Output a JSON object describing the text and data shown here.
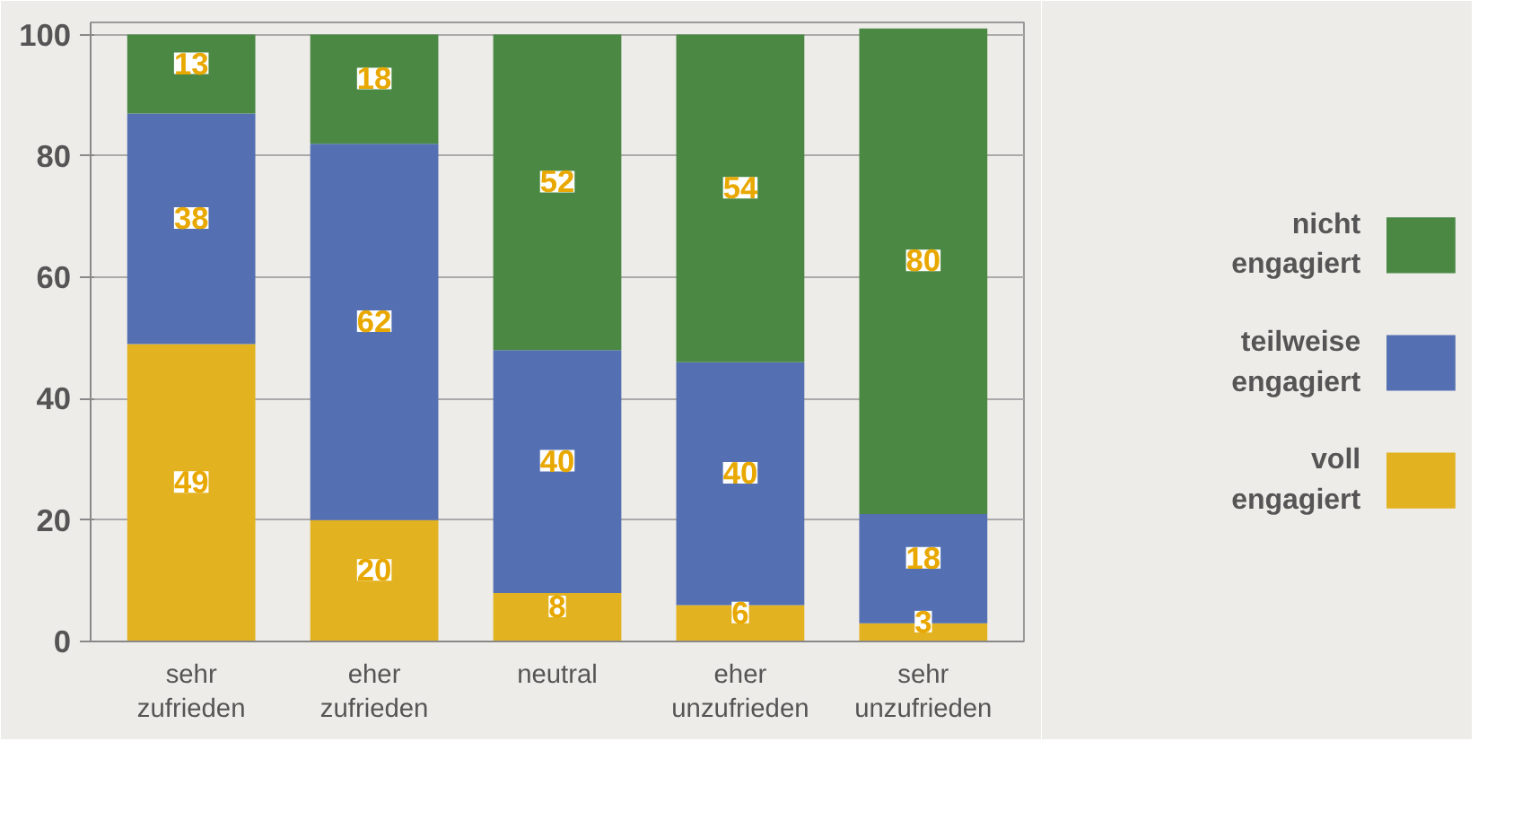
{
  "chart_data": {
    "type": "bar",
    "stacked": true,
    "categories": [
      "sehr zufrieden",
      "eher zufrieden",
      "neutral",
      "eher unzufrieden",
      "sehr unzufrieden"
    ],
    "series": [
      {
        "name": "voll engagiert",
        "color": "#e2b220",
        "values": [
          49,
          20,
          8,
          6,
          3
        ]
      },
      {
        "name": "teilweise engagiert",
        "color": "#5470b2",
        "values": [
          38,
          62,
          40,
          40,
          18
        ]
      },
      {
        "name": "nicht engagiert",
        "color": "#4a8844",
        "values": [
          13,
          18,
          52,
          54,
          80
        ]
      }
    ],
    "ylim": [
      0,
      102
    ],
    "yticks": [
      0,
      20,
      40,
      60,
      80,
      100
    ],
    "grid": "y",
    "legend": "right",
    "data_labels": true
  }
}
